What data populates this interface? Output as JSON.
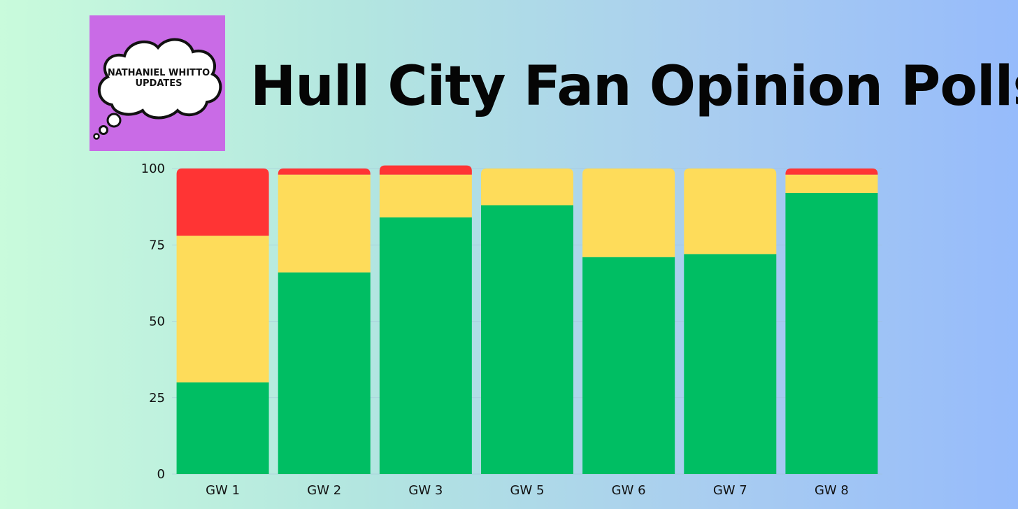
{
  "logo": {
    "line1": "NATHANIEL WHITTO",
    "line2": "UPDATES"
  },
  "title": "Hull City Fan Opinion Polls",
  "colors": {
    "green": "#00be63",
    "yellow": "#fedc5a",
    "red": "#ff3434",
    "logo_bg": "#c96be6"
  },
  "chart_data": {
    "type": "bar",
    "stacked": true,
    "categories": [
      "GW 1",
      "GW 2",
      "GW 3",
      "GW 5",
      "GW 6",
      "GW 7",
      "GW 8"
    ],
    "series": [
      {
        "color": "#00be63",
        "values": [
          30,
          66,
          84,
          88,
          71,
          72,
          92
        ]
      },
      {
        "color": "#fedc5a",
        "values": [
          48,
          32,
          14,
          12,
          29,
          28,
          6
        ]
      },
      {
        "color": "#ff3434",
        "values": [
          22,
          2,
          3,
          0,
          0,
          0,
          2
        ]
      }
    ],
    "yticks": [
      0,
      25,
      50,
      75,
      100
    ],
    "ylim": [
      0,
      100
    ],
    "grid": true,
    "legend": "none"
  }
}
